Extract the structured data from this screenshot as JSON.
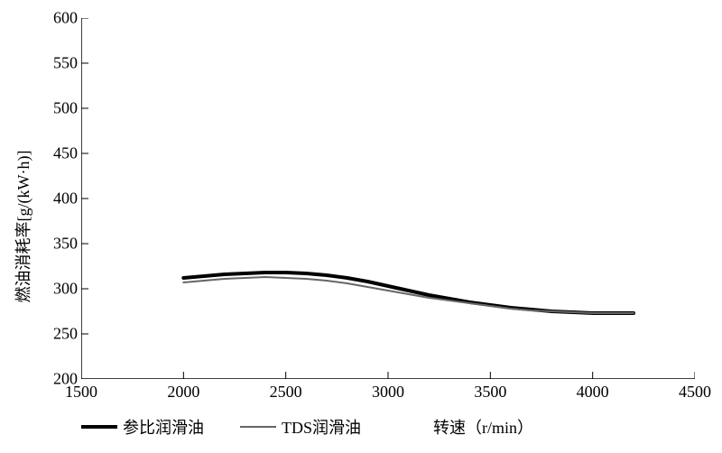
{
  "chart": {
    "type": "line",
    "background_color": "#ffffff",
    "axis_color": "#000000",
    "axis_width": 1.5,
    "label_fontsize": 18,
    "tick_fontsize": 18,
    "ylabel": "燃油消耗率[g/(kW·h)]",
    "xlabel": "转速（r/min）",
    "xlim": [
      1500,
      4500
    ],
    "ylim": [
      200,
      600
    ],
    "xticks": [
      1500,
      2000,
      2500,
      3000,
      3500,
      4000,
      4500
    ],
    "yticks": [
      200,
      250,
      300,
      350,
      400,
      450,
      500,
      550,
      600
    ],
    "xtick_major_len": 8,
    "ytick_major_len": 8,
    "series": [
      {
        "name": "参比润滑油",
        "color": "#000000",
        "width": 4,
        "x": [
          2000,
          2100,
          2200,
          2300,
          2400,
          2500,
          2600,
          2700,
          2800,
          2900,
          3000,
          3100,
          3200,
          3300,
          3400,
          3500,
          3600,
          3700,
          3800,
          3900,
          4000,
          4100,
          4200
        ],
        "y": [
          312,
          314,
          316,
          317,
          318,
          318,
          317,
          315,
          312,
          308,
          303,
          298,
          293,
          289,
          285,
          282,
          279,
          277,
          275,
          274,
          273,
          273,
          273
        ]
      },
      {
        "name": "TDS润滑油",
        "color": "#666666",
        "width": 2,
        "x": [
          2000,
          2100,
          2200,
          2300,
          2400,
          2500,
          2600,
          2700,
          2800,
          2900,
          3000,
          3100,
          3200,
          3300,
          3400,
          3500,
          3600,
          3700,
          3800,
          3900,
          4000,
          4100,
          4200
        ],
        "y": [
          307,
          309,
          311,
          312,
          313,
          312,
          311,
          309,
          306,
          302,
          298,
          294,
          290,
          287,
          284,
          281,
          278,
          276,
          275,
          274,
          273,
          273,
          273
        ]
      }
    ],
    "legend": {
      "items": [
        {
          "label": "参比润滑油",
          "swatch_color": "#000000",
          "swatch_width": 40,
          "swatch_height": 4
        },
        {
          "label": "TDS润滑油",
          "swatch_color": "#666666",
          "swatch_width": 40,
          "swatch_height": 2
        }
      ]
    }
  }
}
